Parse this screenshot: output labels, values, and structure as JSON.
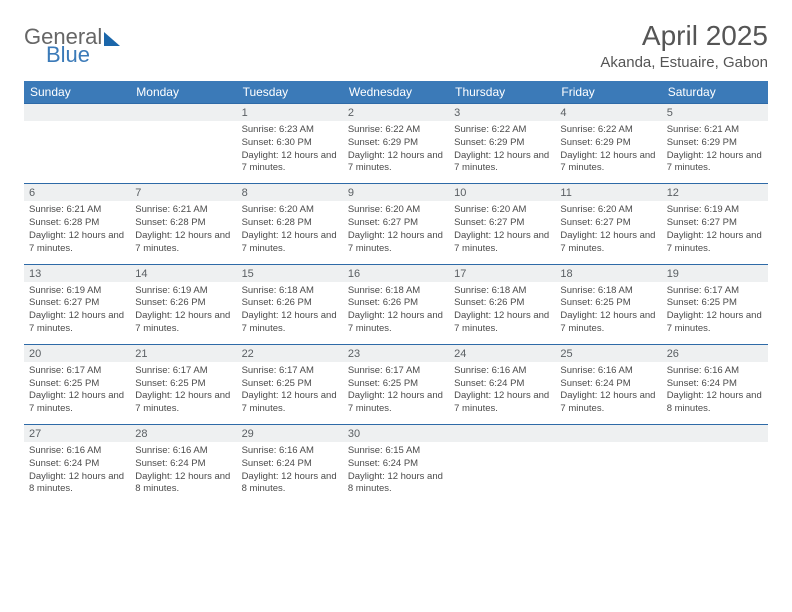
{
  "logo": {
    "general": "General",
    "blue": "Blue"
  },
  "title": {
    "month": "April 2025",
    "location": "Akanda, Estuaire, Gabon"
  },
  "colors": {
    "header_bg": "#3b7ab8",
    "header_text": "#ffffff",
    "daynum_bg": "#eef0f1",
    "row_divider": "#2e6aa7",
    "body_text": "#4b4b4b"
  },
  "weekdays": [
    "Sunday",
    "Monday",
    "Tuesday",
    "Wednesday",
    "Thursday",
    "Friday",
    "Saturday"
  ],
  "weeks": [
    [
      {
        "n": "",
        "sr": "",
        "ss": "",
        "dl": ""
      },
      {
        "n": "",
        "sr": "",
        "ss": "",
        "dl": ""
      },
      {
        "n": "1",
        "sr": "Sunrise: 6:23 AM",
        "ss": "Sunset: 6:30 PM",
        "dl": "Daylight: 12 hours and 7 minutes."
      },
      {
        "n": "2",
        "sr": "Sunrise: 6:22 AM",
        "ss": "Sunset: 6:29 PM",
        "dl": "Daylight: 12 hours and 7 minutes."
      },
      {
        "n": "3",
        "sr": "Sunrise: 6:22 AM",
        "ss": "Sunset: 6:29 PM",
        "dl": "Daylight: 12 hours and 7 minutes."
      },
      {
        "n": "4",
        "sr": "Sunrise: 6:22 AM",
        "ss": "Sunset: 6:29 PM",
        "dl": "Daylight: 12 hours and 7 minutes."
      },
      {
        "n": "5",
        "sr": "Sunrise: 6:21 AM",
        "ss": "Sunset: 6:29 PM",
        "dl": "Daylight: 12 hours and 7 minutes."
      }
    ],
    [
      {
        "n": "6",
        "sr": "Sunrise: 6:21 AM",
        "ss": "Sunset: 6:28 PM",
        "dl": "Daylight: 12 hours and 7 minutes."
      },
      {
        "n": "7",
        "sr": "Sunrise: 6:21 AM",
        "ss": "Sunset: 6:28 PM",
        "dl": "Daylight: 12 hours and 7 minutes."
      },
      {
        "n": "8",
        "sr": "Sunrise: 6:20 AM",
        "ss": "Sunset: 6:28 PM",
        "dl": "Daylight: 12 hours and 7 minutes."
      },
      {
        "n": "9",
        "sr": "Sunrise: 6:20 AM",
        "ss": "Sunset: 6:27 PM",
        "dl": "Daylight: 12 hours and 7 minutes."
      },
      {
        "n": "10",
        "sr": "Sunrise: 6:20 AM",
        "ss": "Sunset: 6:27 PM",
        "dl": "Daylight: 12 hours and 7 minutes."
      },
      {
        "n": "11",
        "sr": "Sunrise: 6:20 AM",
        "ss": "Sunset: 6:27 PM",
        "dl": "Daylight: 12 hours and 7 minutes."
      },
      {
        "n": "12",
        "sr": "Sunrise: 6:19 AM",
        "ss": "Sunset: 6:27 PM",
        "dl": "Daylight: 12 hours and 7 minutes."
      }
    ],
    [
      {
        "n": "13",
        "sr": "Sunrise: 6:19 AM",
        "ss": "Sunset: 6:27 PM",
        "dl": "Daylight: 12 hours and 7 minutes."
      },
      {
        "n": "14",
        "sr": "Sunrise: 6:19 AM",
        "ss": "Sunset: 6:26 PM",
        "dl": "Daylight: 12 hours and 7 minutes."
      },
      {
        "n": "15",
        "sr": "Sunrise: 6:18 AM",
        "ss": "Sunset: 6:26 PM",
        "dl": "Daylight: 12 hours and 7 minutes."
      },
      {
        "n": "16",
        "sr": "Sunrise: 6:18 AM",
        "ss": "Sunset: 6:26 PM",
        "dl": "Daylight: 12 hours and 7 minutes."
      },
      {
        "n": "17",
        "sr": "Sunrise: 6:18 AM",
        "ss": "Sunset: 6:26 PM",
        "dl": "Daylight: 12 hours and 7 minutes."
      },
      {
        "n": "18",
        "sr": "Sunrise: 6:18 AM",
        "ss": "Sunset: 6:25 PM",
        "dl": "Daylight: 12 hours and 7 minutes."
      },
      {
        "n": "19",
        "sr": "Sunrise: 6:17 AM",
        "ss": "Sunset: 6:25 PM",
        "dl": "Daylight: 12 hours and 7 minutes."
      }
    ],
    [
      {
        "n": "20",
        "sr": "Sunrise: 6:17 AM",
        "ss": "Sunset: 6:25 PM",
        "dl": "Daylight: 12 hours and 7 minutes."
      },
      {
        "n": "21",
        "sr": "Sunrise: 6:17 AM",
        "ss": "Sunset: 6:25 PM",
        "dl": "Daylight: 12 hours and 7 minutes."
      },
      {
        "n": "22",
        "sr": "Sunrise: 6:17 AM",
        "ss": "Sunset: 6:25 PM",
        "dl": "Daylight: 12 hours and 7 minutes."
      },
      {
        "n": "23",
        "sr": "Sunrise: 6:17 AM",
        "ss": "Sunset: 6:25 PM",
        "dl": "Daylight: 12 hours and 7 minutes."
      },
      {
        "n": "24",
        "sr": "Sunrise: 6:16 AM",
        "ss": "Sunset: 6:24 PM",
        "dl": "Daylight: 12 hours and 7 minutes."
      },
      {
        "n": "25",
        "sr": "Sunrise: 6:16 AM",
        "ss": "Sunset: 6:24 PM",
        "dl": "Daylight: 12 hours and 7 minutes."
      },
      {
        "n": "26",
        "sr": "Sunrise: 6:16 AM",
        "ss": "Sunset: 6:24 PM",
        "dl": "Daylight: 12 hours and 8 minutes."
      }
    ],
    [
      {
        "n": "27",
        "sr": "Sunrise: 6:16 AM",
        "ss": "Sunset: 6:24 PM",
        "dl": "Daylight: 12 hours and 8 minutes."
      },
      {
        "n": "28",
        "sr": "Sunrise: 6:16 AM",
        "ss": "Sunset: 6:24 PM",
        "dl": "Daylight: 12 hours and 8 minutes."
      },
      {
        "n": "29",
        "sr": "Sunrise: 6:16 AM",
        "ss": "Sunset: 6:24 PM",
        "dl": "Daylight: 12 hours and 8 minutes."
      },
      {
        "n": "30",
        "sr": "Sunrise: 6:15 AM",
        "ss": "Sunset: 6:24 PM",
        "dl": "Daylight: 12 hours and 8 minutes."
      },
      {
        "n": "",
        "sr": "",
        "ss": "",
        "dl": ""
      },
      {
        "n": "",
        "sr": "",
        "ss": "",
        "dl": ""
      },
      {
        "n": "",
        "sr": "",
        "ss": "",
        "dl": ""
      }
    ]
  ]
}
